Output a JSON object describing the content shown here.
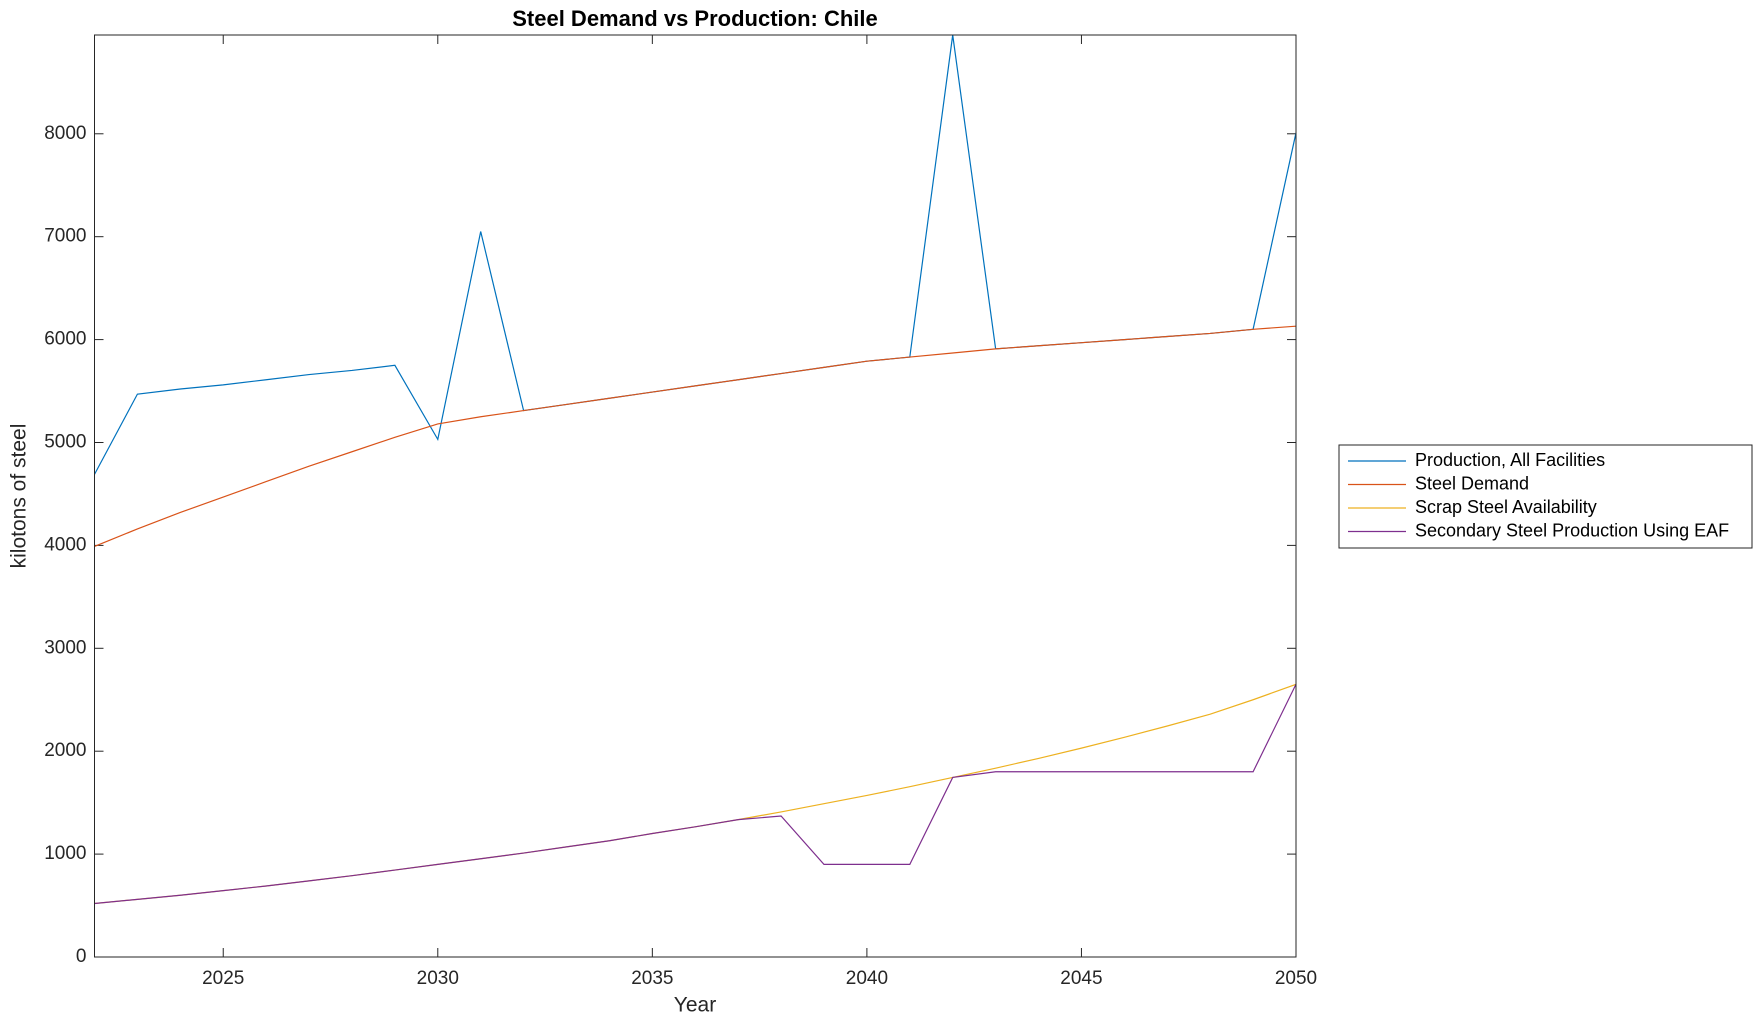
{
  "chart_data": {
    "type": "line",
    "title": "Steel Demand vs Production: Chile",
    "x_label": "Year",
    "y_label": "kilotons of steel",
    "x": [
      2022,
      2023,
      2024,
      2025,
      2026,
      2027,
      2028,
      2029,
      2030,
      2031,
      2032,
      2033,
      2034,
      2035,
      2036,
      2037,
      2038,
      2039,
      2040,
      2041,
      2042,
      2043,
      2044,
      2045,
      2046,
      2047,
      2048,
      2049,
      2050
    ],
    "series": [
      {
        "name": "Production, All Facilities",
        "color": "#0072BD",
        "values": [
          4690,
          5470,
          5520,
          5560,
          5610,
          5660,
          5700,
          5750,
          5030,
          7050,
          5310,
          5370,
          5430,
          5490,
          5550,
          5610,
          5670,
          5730,
          5790,
          5830,
          8960,
          5910,
          5940,
          5970,
          6000,
          6030,
          6060,
          6100,
          8010
        ]
      },
      {
        "name": "Steel Demand",
        "color": "#D95319",
        "values": [
          3990,
          4160,
          4320,
          4470,
          4620,
          4770,
          4910,
          5050,
          5180,
          5250,
          5310,
          5370,
          5430,
          5490,
          5550,
          5610,
          5670,
          5730,
          5790,
          5830,
          5870,
          5910,
          5940,
          5970,
          6000,
          6030,
          6060,
          6100,
          6130
        ]
      },
      {
        "name": "Scrap Steel Availability",
        "color": "#EDB120",
        "values": [
          520,
          560,
          600,
          645,
          690,
          740,
          790,
          845,
          900,
          955,
          1010,
          1070,
          1130,
          1200,
          1265,
          1335,
          1410,
          1490,
          1570,
          1655,
          1745,
          1835,
          1930,
          2030,
          2135,
          2245,
          2360,
          2500,
          2650
        ]
      },
      {
        "name": "Secondary Steel Production Using EAF",
        "color": "#7E2F8E",
        "values": [
          520,
          560,
          600,
          645,
          690,
          740,
          790,
          845,
          900,
          955,
          1010,
          1070,
          1130,
          1200,
          1265,
          1335,
          1370,
          900,
          900,
          900,
          1745,
          1800,
          1800,
          1800,
          1800,
          1800,
          1800,
          1800,
          2650
        ]
      }
    ],
    "xlim": [
      2022,
      2050
    ],
    "xticks": [
      2025,
      2030,
      2035,
      2040,
      2045,
      2050
    ],
    "ylim": [
      0,
      8960
    ],
    "yticks": [
      0,
      1000,
      2000,
      3000,
      4000,
      5000,
      6000,
      7000,
      8000
    ],
    "grid": false,
    "legend": "outside-right"
  }
}
